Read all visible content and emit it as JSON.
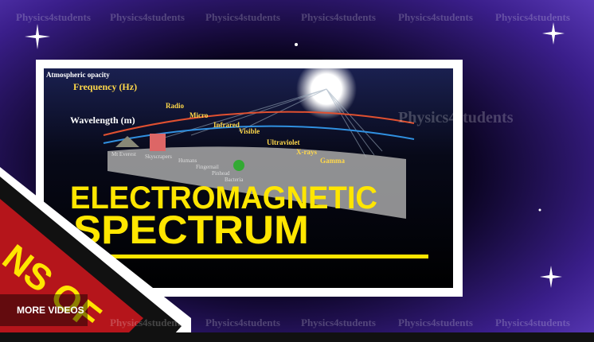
{
  "watermark": "Physics4students",
  "diagram": {
    "opacity_label": "Atmospheric opacity",
    "frequency_label": "Frequency (Hz)",
    "wavelength_label": "Wavelength (m)",
    "bands": [
      "Radio",
      "Micro",
      "Infrared",
      "Visible",
      "Ultraviolet",
      "X-rays",
      "Gamma"
    ],
    "objects": [
      "Mt Everest",
      "Skyscrapers",
      "Humans",
      "Fingernail",
      "Pinhead",
      "Bacteria"
    ]
  },
  "title": {
    "line1": "ELECTROMAGNETIC",
    "line2": "SPECTRUM"
  },
  "banner": "NS OF",
  "player": {
    "more_videos": "MORE VIDEOS"
  }
}
